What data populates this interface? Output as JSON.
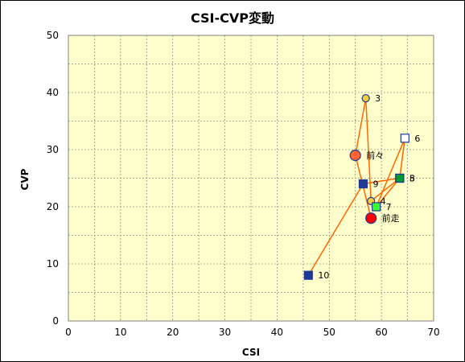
{
  "chart_data": {
    "type": "scatter",
    "title": "CSI-CVP変動",
    "xlabel": "CSI",
    "ylabel": "CVP",
    "xlim": [
      0,
      70
    ],
    "ylim": [
      0,
      50
    ],
    "xticks": [
      "0",
      "10",
      "20",
      "30",
      "40",
      "50",
      "60",
      "70"
    ],
    "yticks": [
      "0",
      "10",
      "20",
      "30",
      "40",
      "50"
    ],
    "grid": true,
    "plot_background": "#ffffcc",
    "line_color": "#ff6600",
    "path_order": [
      "前走",
      "前々",
      "3",
      "4",
      "5",
      "6",
      "7",
      "8",
      "9",
      "10"
    ],
    "points": [
      {
        "label": "3",
        "x": 57.0,
        "y": 39,
        "marker": "circle",
        "fill": "#ffcc33",
        "stroke": "#1f3a93",
        "size": "small"
      },
      {
        "label": "6",
        "x": 64.5,
        "y": 32,
        "marker": "square",
        "fill": "#ffffff",
        "stroke": "#1f3a93",
        "size": "medium"
      },
      {
        "label": "前々",
        "x": 55.0,
        "y": 29,
        "marker": "circle",
        "fill": "#ff6633",
        "stroke": "#1f3a93",
        "size": "large"
      },
      {
        "label": "5",
        "x": 63.5,
        "y": 25,
        "marker": "square",
        "fill": "#009933",
        "stroke": "#1f3a93",
        "size": "medium"
      },
      {
        "label": "8",
        "x": 63.5,
        "y": 25,
        "marker": "square",
        "fill": "#009933",
        "stroke": "#1f3a93",
        "size": "medium"
      },
      {
        "label": "9",
        "x": 56.5,
        "y": 24,
        "marker": "square",
        "fill": "#1f3a93",
        "stroke": "#1f3a93",
        "size": "medium"
      },
      {
        "label": "4",
        "x": 58.0,
        "y": 21,
        "marker": "circle",
        "fill": "#ffcc33",
        "stroke": "#1f3a93",
        "size": "small"
      },
      {
        "label": "7",
        "x": 59.0,
        "y": 20,
        "marker": "square",
        "fill": "#33ff33",
        "stroke": "#1f3a93",
        "size": "medium"
      },
      {
        "label": "前走",
        "x": 58.0,
        "y": 18,
        "marker": "circle",
        "fill": "#ff0000",
        "stroke": "#1f3a93",
        "size": "large"
      },
      {
        "label": "10",
        "x": 46.0,
        "y": 8,
        "marker": "square",
        "fill": "#1f3a93",
        "stroke": "#1f3a93",
        "size": "medium"
      }
    ]
  }
}
